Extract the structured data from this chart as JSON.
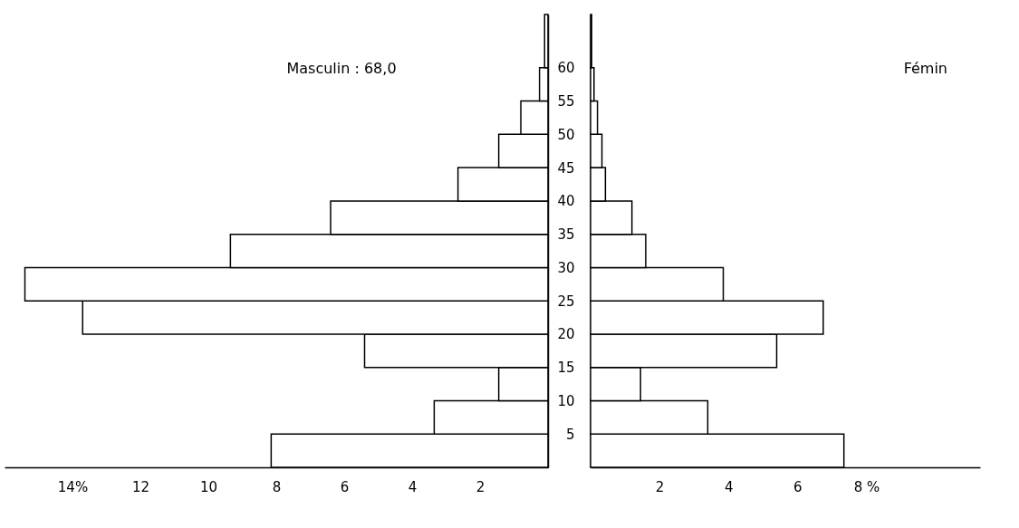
{
  "chart_data": [
    {
      "type": "histogram",
      "orientation": "horizontal",
      "bins": [
        0,
        5,
        10,
        15,
        20,
        25,
        30,
        35,
        40,
        45,
        50,
        55,
        60,
        68
      ],
      "ylim": [
        0,
        68
      ],
      "yticks": [
        5,
        10,
        15,
        20,
        25,
        30,
        35,
        40,
        45,
        50,
        55,
        60
      ],
      "xlim": [
        16,
        0
      ],
      "xticks": [
        {
          "value": 14,
          "label": "14%"
        },
        12,
        10,
        8,
        6,
        4,
        2
      ],
      "tick_labels": "x",
      "grid": false,
      "series": [
        {
          "name": "Masculin : 68,0",
          "color": "#ffffff",
          "values": [
            8.15,
            3.35,
            1.45,
            5.4,
            13.7,
            15.4,
            9.35,
            6.4,
            2.65,
            1.45,
            0.8,
            0.25,
            0.1
          ]
        }
      ]
    },
    {
      "type": "histogram",
      "orientation": "horizontal",
      "bins": [
        0,
        5,
        10,
        15,
        20,
        25,
        30,
        35,
        40,
        45,
        50,
        55,
        60,
        68
      ],
      "ylim": [
        0,
        68
      ],
      "yticks": [
        5,
        10,
        15,
        20,
        25,
        30,
        35,
        40,
        45,
        50,
        55,
        60
      ],
      "xlim": [
        0,
        11.3
      ],
      "xticks": [
        2,
        4,
        6,
        {
          "value": 8,
          "label": "8 %"
        }
      ],
      "grid": false,
      "series": [
        {
          "name": "Fémin",
          "color": "#ffffff",
          "values": [
            7.35,
            3.4,
            1.45,
            5.4,
            6.75,
            3.85,
            1.6,
            1.2,
            0.43,
            0.33,
            0.2,
            0.1,
            0.03
          ]
        }
      ]
    }
  ]
}
